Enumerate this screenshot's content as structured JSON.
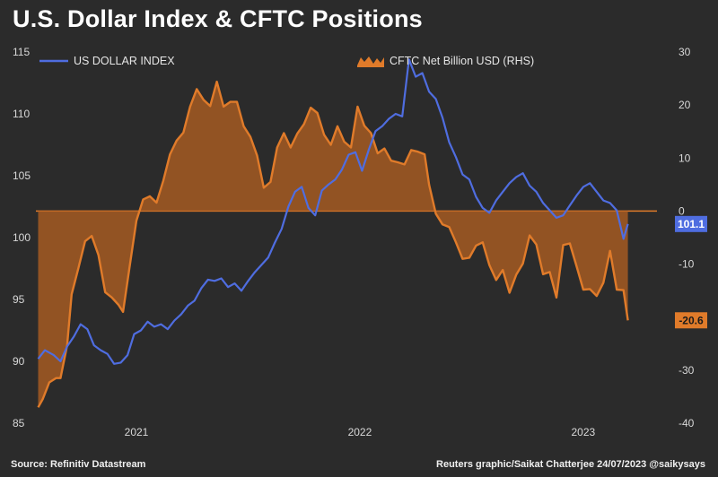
{
  "title": "U.S. Dollar Index & CFTC Positions",
  "source": "Source: Refinitiv Datastream",
  "credit": "Reuters graphic/Saikat Chatterjee 24/07/2023 @saikysays",
  "colors": {
    "background": "#2b2b2b",
    "usd": "#4f6de0",
    "cftc": "#e07b2a",
    "cftc_fill": "#a55a22"
  },
  "chart_data": {
    "type": "line",
    "x_tick_labels": [
      "2021",
      "2022",
      "2023"
    ],
    "x_tick_positions": [
      2021.0,
      2022.0,
      2023.0
    ],
    "x_range": [
      2020.55,
      2023.33
    ],
    "y_left": {
      "ticks": [
        85,
        90,
        95,
        100,
        105,
        110,
        115
      ],
      "range": [
        85,
        115
      ]
    },
    "y_right": {
      "ticks": [
        -40,
        -30,
        -20,
        -10,
        0,
        10,
        20,
        30
      ],
      "range": [
        -40,
        30
      ]
    },
    "legend_placement": "top",
    "series": [
      {
        "name": "US DOLLAR INDEX",
        "axis": "left",
        "end_label": "101.1",
        "points": [
          [
            2020.56,
            90.2
          ],
          [
            2020.59,
            90.9
          ],
          [
            2020.63,
            90.5
          ],
          [
            2020.66,
            90.0
          ],
          [
            2020.69,
            91.2
          ],
          [
            2020.72,
            92.0
          ],
          [
            2020.75,
            93.0
          ],
          [
            2020.78,
            92.6
          ],
          [
            2020.81,
            91.3
          ],
          [
            2020.84,
            90.9
          ],
          [
            2020.87,
            90.6
          ],
          [
            2020.9,
            89.8
          ],
          [
            2020.93,
            89.9
          ],
          [
            2020.96,
            90.5
          ],
          [
            2020.99,
            92.2
          ],
          [
            2021.02,
            92.5
          ],
          [
            2021.05,
            93.2
          ],
          [
            2021.08,
            92.8
          ],
          [
            2021.11,
            93.0
          ],
          [
            2021.14,
            92.6
          ],
          [
            2021.17,
            93.3
          ],
          [
            2021.2,
            93.8
          ],
          [
            2021.23,
            94.5
          ],
          [
            2021.26,
            94.9
          ],
          [
            2021.29,
            95.9
          ],
          [
            2021.32,
            96.6
          ],
          [
            2021.35,
            96.5
          ],
          [
            2021.38,
            96.7
          ],
          [
            2021.41,
            96.0
          ],
          [
            2021.44,
            96.3
          ],
          [
            2021.47,
            95.7
          ],
          [
            2021.5,
            96.5
          ],
          [
            2021.53,
            97.2
          ],
          [
            2021.56,
            97.8
          ],
          [
            2021.59,
            98.4
          ],
          [
            2021.62,
            99.6
          ],
          [
            2021.65,
            100.7
          ],
          [
            2021.68,
            102.5
          ],
          [
            2021.71,
            103.7
          ],
          [
            2021.74,
            104.1
          ],
          [
            2021.77,
            102.4
          ],
          [
            2021.8,
            101.8
          ],
          [
            2021.83,
            103.8
          ],
          [
            2021.86,
            104.3
          ],
          [
            2021.89,
            104.7
          ],
          [
            2021.92,
            105.5
          ],
          [
            2021.95,
            106.7
          ],
          [
            2021.98,
            106.9
          ],
          [
            2022.01,
            105.4
          ],
          [
            2022.04,
            107.1
          ],
          [
            2022.07,
            108.6
          ],
          [
            2022.1,
            109.0
          ],
          [
            2022.13,
            109.6
          ],
          [
            2022.16,
            110.0
          ],
          [
            2022.19,
            109.8
          ],
          [
            2022.22,
            114.4
          ],
          [
            2022.25,
            113.0
          ],
          [
            2022.28,
            113.3
          ],
          [
            2022.31,
            111.8
          ],
          [
            2022.34,
            111.2
          ],
          [
            2022.37,
            109.7
          ],
          [
            2022.4,
            107.7
          ],
          [
            2022.43,
            106.5
          ],
          [
            2022.46,
            105.1
          ],
          [
            2022.49,
            104.7
          ],
          [
            2022.52,
            103.3
          ],
          [
            2022.55,
            102.4
          ],
          [
            2022.58,
            102.0
          ],
          [
            2022.61,
            103.0
          ],
          [
            2022.64,
            103.7
          ],
          [
            2022.67,
            104.4
          ],
          [
            2022.7,
            104.9
          ],
          [
            2022.73,
            105.2
          ],
          [
            2022.76,
            104.2
          ],
          [
            2022.79,
            103.7
          ],
          [
            2022.82,
            102.8
          ],
          [
            2022.85,
            102.2
          ],
          [
            2022.88,
            101.6
          ],
          [
            2022.91,
            101.8
          ],
          [
            2022.94,
            102.6
          ],
          [
            2022.97,
            103.4
          ],
          [
            2023.0,
            104.1
          ],
          [
            2023.03,
            104.4
          ],
          [
            2023.06,
            103.7
          ],
          [
            2023.09,
            103.0
          ],
          [
            2023.12,
            102.8
          ],
          [
            2023.15,
            102.2
          ],
          [
            2023.18,
            99.9
          ],
          [
            2023.2,
            101.1
          ]
        ]
      },
      {
        "name": "CFTC Net Billion USD (RHS)",
        "axis": "right",
        "end_label": "-20.6",
        "points": [
          [
            2020.56,
            -37.0
          ],
          [
            2020.58,
            -35.5
          ],
          [
            2020.61,
            -32.3
          ],
          [
            2020.64,
            -31.5
          ],
          [
            2020.66,
            -31.5
          ],
          [
            2020.69,
            -25.3
          ],
          [
            2020.71,
            -15.7
          ],
          [
            2020.74,
            -10.8
          ],
          [
            2020.77,
            -5.7
          ],
          [
            2020.8,
            -4.7
          ],
          [
            2020.83,
            -8.3
          ],
          [
            2020.86,
            -15.3
          ],
          [
            2020.89,
            -16.3
          ],
          [
            2020.92,
            -17.7
          ],
          [
            2020.94,
            -19.0
          ],
          [
            2020.97,
            -10.4
          ],
          [
            2021.0,
            -1.8
          ],
          [
            2021.03,
            2.2
          ],
          [
            2021.06,
            2.8
          ],
          [
            2021.09,
            1.6
          ],
          [
            2021.12,
            5.7
          ],
          [
            2021.15,
            10.7
          ],
          [
            2021.18,
            13.3
          ],
          [
            2021.21,
            14.8
          ],
          [
            2021.24,
            19.7
          ],
          [
            2021.27,
            23.0
          ],
          [
            2021.3,
            21.0
          ],
          [
            2021.33,
            19.8
          ],
          [
            2021.36,
            24.4
          ],
          [
            2021.39,
            19.7
          ],
          [
            2021.42,
            20.6
          ],
          [
            2021.45,
            20.6
          ],
          [
            2021.48,
            16.0
          ],
          [
            2021.51,
            14.0
          ],
          [
            2021.54,
            10.5
          ],
          [
            2021.57,
            4.4
          ],
          [
            2021.6,
            5.5
          ],
          [
            2021.63,
            12.0
          ],
          [
            2021.66,
            14.7
          ],
          [
            2021.69,
            12.0
          ],
          [
            2021.72,
            14.6
          ],
          [
            2021.75,
            16.4
          ],
          [
            2021.78,
            19.5
          ],
          [
            2021.81,
            18.5
          ],
          [
            2021.84,
            14.4
          ],
          [
            2021.87,
            12.5
          ],
          [
            2021.9,
            16.0
          ],
          [
            2021.93,
            13.1
          ],
          [
            2021.96,
            12.0
          ],
          [
            2021.99,
            19.7
          ],
          [
            2022.02,
            16.1
          ],
          [
            2022.05,
            14.7
          ],
          [
            2022.08,
            10.9
          ],
          [
            2022.11,
            11.8
          ],
          [
            2022.14,
            9.5
          ],
          [
            2022.17,
            9.2
          ],
          [
            2022.2,
            8.8
          ],
          [
            2022.23,
            11.5
          ],
          [
            2022.26,
            11.2
          ],
          [
            2022.29,
            10.7
          ],
          [
            2022.31,
            5.0
          ],
          [
            2022.34,
            -0.5
          ],
          [
            2022.37,
            -2.5
          ],
          [
            2022.4,
            -3.0
          ],
          [
            2022.43,
            -5.9
          ],
          [
            2022.46,
            -9.0
          ],
          [
            2022.49,
            -8.8
          ],
          [
            2022.52,
            -6.5
          ],
          [
            2022.55,
            -5.9
          ],
          [
            2022.58,
            -10.2
          ],
          [
            2022.61,
            -13.0
          ],
          [
            2022.64,
            -11.1
          ],
          [
            2022.67,
            -15.4
          ],
          [
            2022.7,
            -12.0
          ],
          [
            2022.73,
            -9.9
          ],
          [
            2022.76,
            -4.6
          ],
          [
            2022.79,
            -6.3
          ],
          [
            2022.82,
            -11.9
          ],
          [
            2022.85,
            -11.5
          ],
          [
            2022.88,
            -16.3
          ],
          [
            2022.91,
            -6.4
          ],
          [
            2022.94,
            -6.1
          ],
          [
            2022.97,
            -10.4
          ],
          [
            2023.0,
            -14.8
          ],
          [
            2023.03,
            -14.7
          ],
          [
            2023.06,
            -16.0
          ],
          [
            2023.09,
            -13.5
          ],
          [
            2023.12,
            -7.5
          ],
          [
            2023.15,
            -14.8
          ],
          [
            2023.18,
            -14.9
          ],
          [
            2023.2,
            -20.6
          ]
        ]
      }
    ]
  }
}
